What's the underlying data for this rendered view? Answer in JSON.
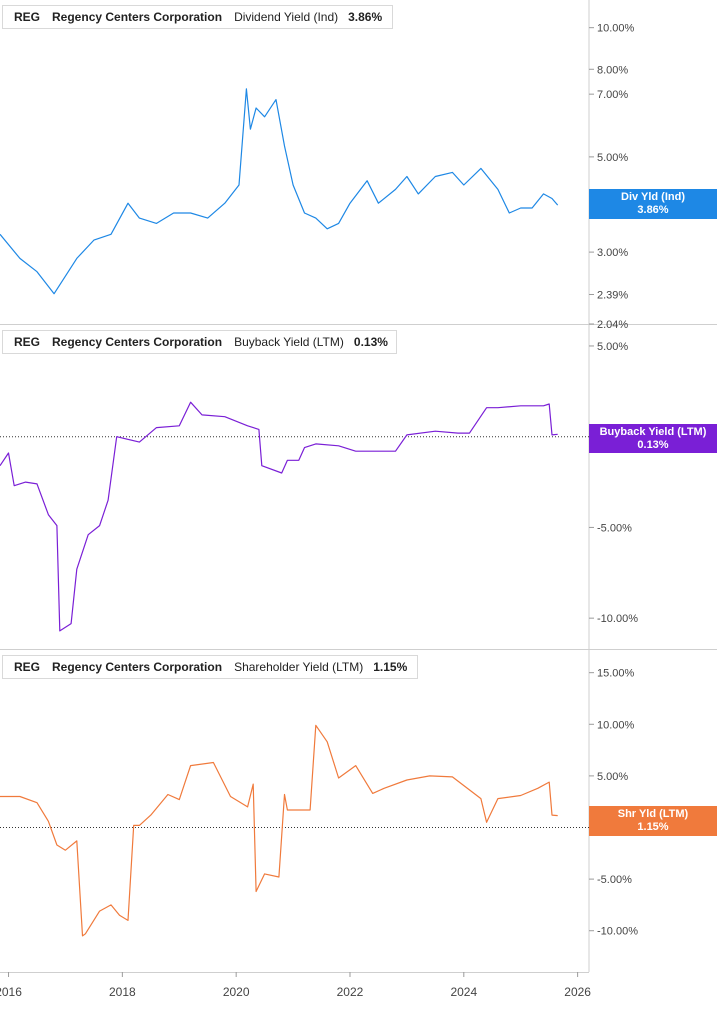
{
  "chart_data": [
    {
      "type": "line",
      "ticker": "REG",
      "company": "Regency Centers Corporation",
      "metric": "Dividend Yield (Ind)",
      "current_value": "3.86%",
      "tag_label": "Div Yld (Ind)",
      "tag_value": "3.86%",
      "color": "#1e88e5",
      "y_scale": "log",
      "y_ticks": [
        "10.00%",
        "8.00%",
        "7.00%",
        "5.00%",
        "3.00%",
        "2.39%",
        "2.04%"
      ],
      "y_tick_values": [
        10.0,
        8.0,
        7.0,
        5.0,
        3.0,
        2.39,
        2.04
      ],
      "ylim": [
        2.04,
        11.6
      ],
      "x": [
        2015.85,
        2016.2,
        2016.5,
        2016.8,
        2017.2,
        2017.5,
        2017.8,
        2018.1,
        2018.3,
        2018.6,
        2018.9,
        2019.2,
        2019.5,
        2019.8,
        2020.05,
        2020.18,
        2020.25,
        2020.35,
        2020.5,
        2020.7,
        2020.85,
        2021.0,
        2021.2,
        2021.4,
        2021.6,
        2021.8,
        2022.0,
        2022.3,
        2022.5,
        2022.8,
        2023.0,
        2023.2,
        2023.5,
        2023.8,
        2024.0,
        2024.3,
        2024.6,
        2024.8,
        2025.0,
        2025.2,
        2025.4,
        2025.55,
        2025.65
      ],
      "y": [
        3.3,
        2.9,
        2.7,
        2.4,
        2.9,
        3.2,
        3.3,
        3.9,
        3.6,
        3.5,
        3.7,
        3.7,
        3.6,
        3.9,
        4.3,
        7.2,
        5.8,
        6.5,
        6.2,
        6.8,
        5.3,
        4.3,
        3.7,
        3.6,
        3.4,
        3.5,
        3.9,
        4.4,
        3.9,
        4.2,
        4.5,
        4.1,
        4.5,
        4.6,
        4.3,
        4.7,
        4.2,
        3.7,
        3.8,
        3.8,
        4.1,
        4.0,
        3.86
      ]
    },
    {
      "type": "line",
      "ticker": "REG",
      "company": "Regency Centers Corporation",
      "metric": "Buyback Yield (LTM)",
      "current_value": "0.13%",
      "tag_label": "Buyback Yield (LTM)",
      "tag_value": "0.13%",
      "color": "#7a1fd6",
      "y_ticks": [
        "5.00%",
        "-5.00%",
        "-10.00%"
      ],
      "y_tick_values": [
        5.0,
        -5.0,
        -10.0
      ],
      "ylim": [
        -11.7,
        6.1
      ],
      "x": [
        2015.85,
        2016.0,
        2016.1,
        2016.3,
        2016.5,
        2016.7,
        2016.85,
        2016.9,
        2017.1,
        2017.2,
        2017.4,
        2017.6,
        2017.75,
        2017.9,
        2018.3,
        2018.6,
        2019.0,
        2019.2,
        2019.4,
        2019.8,
        2020.2,
        2020.4,
        2020.45,
        2020.8,
        2020.9,
        2021.1,
        2021.2,
        2021.4,
        2021.8,
        2022.1,
        2022.5,
        2022.8,
        2023.0,
        2023.5,
        2023.9,
        2024.1,
        2024.4,
        2024.6,
        2025.0,
        2025.4,
        2025.5,
        2025.55,
        2025.65
      ],
      "y": [
        -1.6,
        -0.9,
        -2.7,
        -2.5,
        -2.6,
        -4.3,
        -4.9,
        -10.7,
        -10.3,
        -7.3,
        -5.4,
        -4.9,
        -3.5,
        0.0,
        -0.3,
        0.5,
        0.6,
        1.9,
        1.2,
        1.1,
        0.6,
        0.4,
        -1.6,
        -2.0,
        -1.3,
        -1.3,
        -0.6,
        -0.4,
        -0.5,
        -0.8,
        -0.8,
        -0.8,
        0.1,
        0.3,
        0.2,
        0.2,
        1.6,
        1.6,
        1.7,
        1.7,
        1.8,
        0.1,
        0.13
      ]
    },
    {
      "type": "line",
      "ticker": "REG",
      "company": "Regency Centers Corporation",
      "metric": "Shareholder Yield (LTM)",
      "current_value": "1.15%",
      "tag_label": "Shr Yld (LTM)",
      "tag_value": "1.15%",
      "color": "#f07a3c",
      "y_ticks": [
        "15.00%",
        "10.00%",
        "5.00%",
        "-5.00%",
        "-10.00%"
      ],
      "y_tick_values": [
        15.0,
        10.0,
        5.0,
        -5.0,
        -10.0
      ],
      "ylim": [
        -14.0,
        17.1
      ],
      "x": [
        2015.85,
        2016.2,
        2016.5,
        2016.7,
        2016.85,
        2017.0,
        2017.2,
        2017.3,
        2017.35,
        2017.6,
        2017.8,
        2017.95,
        2018.1,
        2018.2,
        2018.3,
        2018.5,
        2018.8,
        2019.0,
        2019.2,
        2019.6,
        2019.9,
        2020.2,
        2020.3,
        2020.35,
        2020.5,
        2020.75,
        2020.85,
        2020.9,
        2021.3,
        2021.4,
        2021.6,
        2021.8,
        2022.1,
        2022.4,
        2022.6,
        2023.0,
        2023.4,
        2023.8,
        2024.3,
        2024.4,
        2024.6,
        2025.0,
        2025.3,
        2025.5,
        2025.55,
        2025.65
      ],
      "y": [
        3.0,
        3.0,
        2.4,
        0.6,
        -1.7,
        -2.2,
        -1.3,
        -10.5,
        -10.3,
        -8.1,
        -7.5,
        -8.5,
        -9.0,
        0.2,
        0.2,
        1.2,
        3.2,
        2.7,
        6.0,
        6.3,
        3.0,
        2.0,
        4.2,
        -6.2,
        -4.5,
        -4.8,
        3.2,
        1.7,
        1.7,
        9.9,
        8.3,
        4.8,
        6.0,
        3.3,
        3.8,
        4.6,
        5.0,
        4.9,
        2.8,
        0.5,
        2.8,
        3.1,
        3.8,
        4.4,
        1.2,
        1.15
      ]
    }
  ],
  "x_axis": {
    "ticks": [
      "2016",
      "2018",
      "2020",
      "2022",
      "2024",
      "2026"
    ],
    "tick_values": [
      2016,
      2018,
      2020,
      2022,
      2024,
      2026
    ],
    "xlim": [
      2015.85,
      2026.2
    ]
  }
}
